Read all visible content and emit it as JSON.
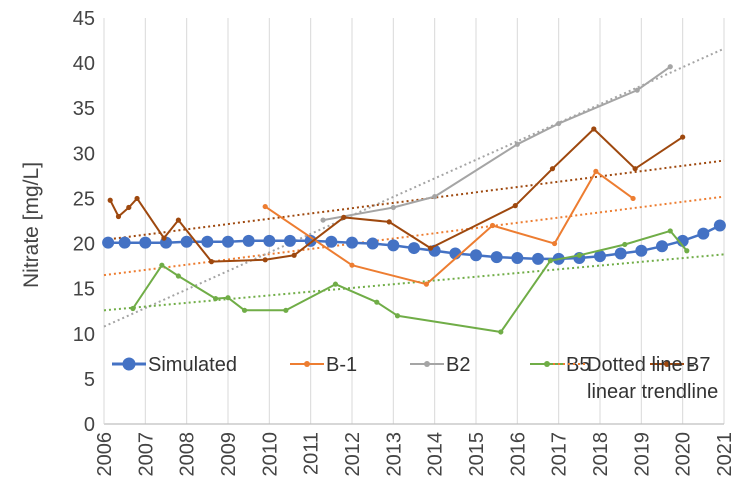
{
  "chart_data": {
    "type": "line",
    "title": "",
    "ylabel": "Nitrate [mg/L]",
    "xlabel": "",
    "xlim": [
      2006,
      2021
    ],
    "ylim": [
      0,
      45
    ],
    "x_ticks": [
      "2006",
      "2007",
      "2008",
      "2009",
      "2010",
      "2011",
      "2012",
      "2013",
      "2014",
      "2015",
      "2016",
      "2017",
      "2018",
      "2019",
      "2020",
      "2021"
    ],
    "y_ticks": [
      "0",
      "5",
      "10",
      "15",
      "20",
      "25",
      "30",
      "35",
      "40",
      "45"
    ],
    "grid": "vertical",
    "legend_position": "bottom",
    "series": [
      {
        "name": "Simulated",
        "color": "#4472C4",
        "marker": "circle",
        "x": [
          2006.1,
          2006.5,
          2007.0,
          2007.5,
          2008.0,
          2008.5,
          2009.0,
          2009.5,
          2010.0,
          2010.5,
          2011.0,
          2011.5,
          2012.0,
          2012.5,
          2013.0,
          2013.5,
          2014.0,
          2014.5,
          2015.0,
          2015.5,
          2016.0,
          2016.5,
          2017.0,
          2017.5,
          2018.0,
          2018.5,
          2019.0,
          2019.5,
          2020.0,
          2020.5,
          2020.9
        ],
        "y": [
          20.1,
          20.1,
          20.1,
          20.1,
          20.2,
          20.2,
          20.2,
          20.3,
          20.3,
          20.3,
          20.3,
          20.2,
          20.1,
          20.0,
          19.8,
          19.5,
          19.2,
          18.9,
          18.7,
          18.5,
          18.4,
          18.3,
          18.3,
          18.4,
          18.6,
          18.9,
          19.2,
          19.7,
          20.3,
          21.1,
          22.0
        ]
      },
      {
        "name": "B-1",
        "color": "#ED7D31",
        "marker": "small-circle",
        "x": [
          2009.9,
          2012.0,
          2013.8,
          2015.4,
          2016.9,
          2017.9,
          2018.8
        ],
        "y": [
          24.1,
          17.6,
          15.5,
          22.0,
          20.0,
          28.0,
          25.0
        ]
      },
      {
        "name": "B2",
        "color": "#A5A5A5",
        "marker": "small-circle",
        "x": [
          2011.3,
          2013.0,
          2014.0,
          2016.0,
          2017.0,
          2018.9,
          2019.7
        ],
        "y": [
          22.6,
          24.0,
          25.2,
          31.0,
          33.3,
          37.0,
          39.6
        ]
      },
      {
        "name": "B5",
        "color": "#70AD47",
        "marker": "small-circle",
        "x": [
          2006.7,
          2007.4,
          2007.8,
          2008.7,
          2009.0,
          2009.4,
          2010.4,
          2011.6,
          2012.6,
          2013.1,
          2015.6,
          2016.8,
          2017.5,
          2018.6,
          2019.7,
          2020.1
        ],
        "y": [
          12.8,
          17.6,
          16.4,
          13.9,
          14.0,
          12.6,
          12.6,
          15.5,
          13.5,
          12.0,
          10.2,
          18.1,
          18.7,
          19.9,
          21.4,
          19.2
        ]
      },
      {
        "name": "B7",
        "color": "#9E480E",
        "marker": "small-circle",
        "x": [
          2006.15,
          2006.35,
          2006.6,
          2006.8,
          2007.45,
          2007.8,
          2008.6,
          2009.9,
          2010.6,
          2011.8,
          2012.9,
          2013.9,
          2015.95,
          2016.85,
          2017.85,
          2018.85,
          2020.0
        ],
        "y": [
          24.8,
          23.0,
          24.0,
          25.0,
          20.6,
          22.6,
          18.0,
          18.2,
          18.7,
          22.9,
          22.4,
          19.5,
          24.2,
          28.3,
          32.7,
          28.3,
          31.8
        ]
      }
    ],
    "trendlines": [
      {
        "series": "B-1",
        "color": "#ED7D31",
        "x": [
          2006,
          2021
        ],
        "y": [
          16.5,
          25.2
        ]
      },
      {
        "series": "B2",
        "color": "#A5A5A5",
        "x": [
          2006,
          2021
        ],
        "y": [
          10.8,
          41.6
        ]
      },
      {
        "series": "B5",
        "color": "#70AD47",
        "x": [
          2006,
          2021
        ],
        "y": [
          12.6,
          18.8
        ]
      },
      {
        "series": "B7",
        "color": "#9E480E",
        "x": [
          2006,
          2021
        ],
        "y": [
          20.4,
          29.2
        ]
      }
    ],
    "legend": {
      "entries": [
        {
          "label": "Simulated",
          "color": "#4472C4",
          "style": "solid-circle"
        },
        {
          "label": "B-1",
          "color": "#ED7D31",
          "style": "solid-dot"
        },
        {
          "label": "B2",
          "color": "#A5A5A5",
          "style": "solid-dot"
        },
        {
          "label": "B5",
          "color": "#70AD47",
          "style": "solid-dot"
        },
        {
          "label": "B7",
          "color": "#9E480E",
          "style": "solid-dot"
        }
      ],
      "trend_label_lines": [
        "Dotted line -",
        "linear trendline"
      ],
      "trend_color": "#ED7D31"
    }
  }
}
